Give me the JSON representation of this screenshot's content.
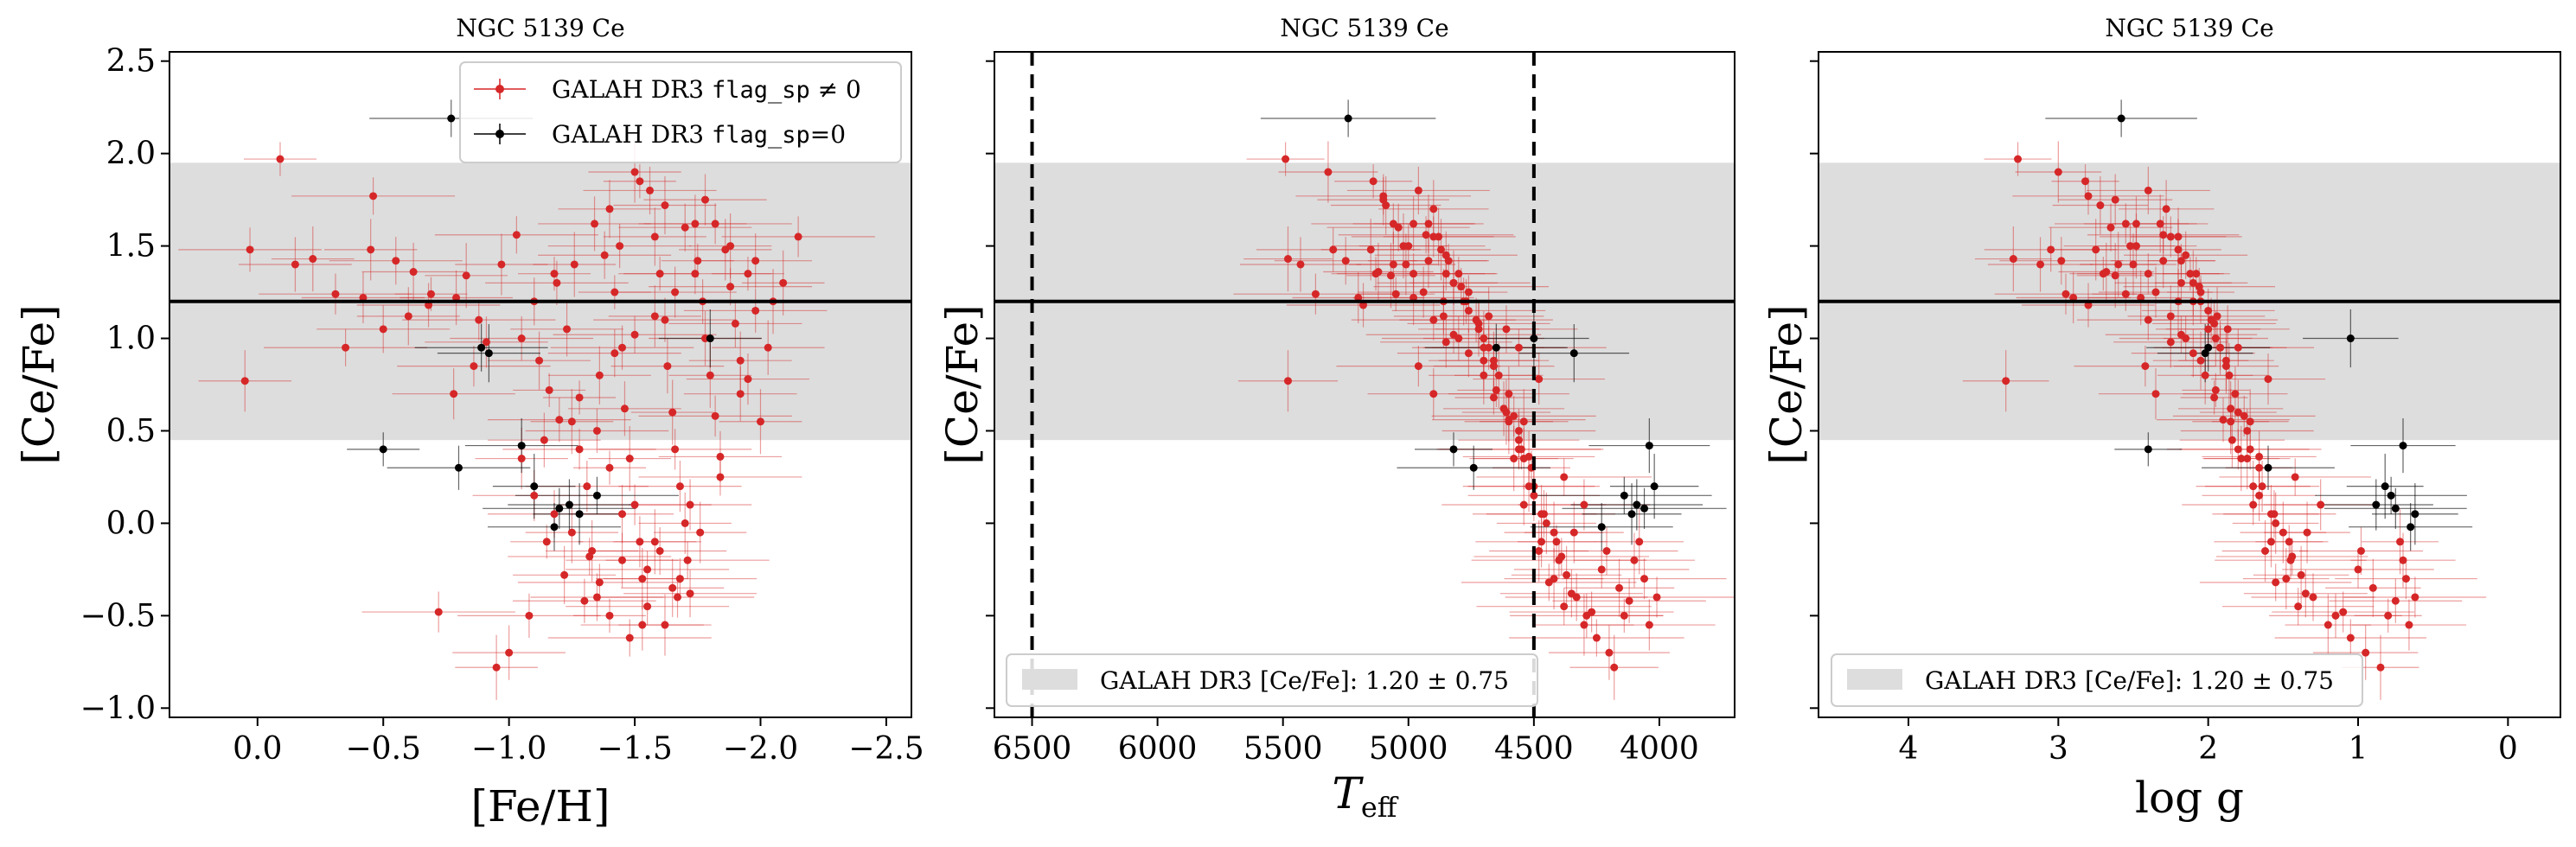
{
  "chart_data": [
    {
      "type": "scatter",
      "title": "NGC 5139 Ce",
      "xlabel": "[Fe/H]",
      "ylabel": "[Ce/Fe]",
      "xlim": [
        0.35,
        -2.6
      ],
      "ylim": [
        -1.05,
        2.55
      ],
      "xticks": [
        0.0,
        -0.5,
        -1.0,
        -1.5,
        -2.0,
        -2.5
      ],
      "xtick_labels": [
        "0.0",
        "−0.5",
        "−1.0",
        "−1.5",
        "−2.0",
        "−2.5"
      ],
      "yticks": [
        -1.0,
        -0.5,
        0.0,
        0.5,
        1.0,
        1.5,
        2.0,
        2.5
      ],
      "ytick_labels": [
        "−1.0",
        "−0.5",
        "0.0",
        "0.5",
        "1.0",
        "1.5",
        "2.0",
        "2.5"
      ],
      "legend": {
        "position": "top-right",
        "entries": [
          {
            "label": "GALAH DR3 ",
            "mono": "flag_sp",
            "suffix": " ≠ 0",
            "color": "#d62728"
          },
          {
            "label": "GALAH DR3 ",
            "mono": "flag_sp",
            "suffix": "=0",
            "color": "#000000"
          }
        ]
      },
      "band": {
        "center": 1.2,
        "half_width": 0.75,
        "color": "#dddddd"
      },
      "hline": 1.2
    },
    {
      "type": "scatter",
      "title": "NGC 5139 Ce",
      "xlabel": "T",
      "xlabel_sub": "eff",
      "ylabel": "[Ce/Fe]",
      "xlim": [
        6650,
        3700
      ],
      "ylim": [
        -1.05,
        2.55
      ],
      "xticks": [
        6500,
        6000,
        5500,
        5000,
        4500,
        4000
      ],
      "xtick_labels": [
        "6500",
        "6000",
        "5500",
        "5000",
        "4500",
        "4000"
      ],
      "yticks": [
        -1.0,
        -0.5,
        0.0,
        0.5,
        1.0,
        1.5,
        2.0,
        2.5
      ],
      "vlines": [
        6500,
        4500
      ],
      "legend": {
        "position": "bottom-left",
        "entries": [
          {
            "label": "GALAH DR3 [Ce/Fe]: 1.20 ± 0.75",
            "color": "#dddddd"
          }
        ]
      },
      "band": {
        "center": 1.2,
        "half_width": 0.75,
        "color": "#dddddd"
      },
      "hline": 1.2
    },
    {
      "type": "scatter",
      "title": "NGC 5139 Ce",
      "xlabel": "log g",
      "ylabel": "[Ce/Fe]",
      "xlim": [
        4.6,
        -0.35
      ],
      "ylim": [
        -1.05,
        2.55
      ],
      "xticks": [
        4,
        3,
        2,
        1,
        0
      ],
      "xtick_labels": [
        "4",
        "3",
        "2",
        "1",
        "0"
      ],
      "yticks": [
        -1.0,
        -0.5,
        0.0,
        0.5,
        1.0,
        1.5,
        2.0,
        2.5
      ],
      "legend": {
        "position": "bottom-left",
        "entries": [
          {
            "label": "GALAH DR3 [Ce/Fe]: 1.20 ± 0.75",
            "color": "#dddddd"
          }
        ]
      },
      "band": {
        "center": 1.2,
        "half_width": 0.75,
        "color": "#dddddd"
      },
      "hline": 1.2
    }
  ],
  "stars": {
    "fields": [
      "feh",
      "teff",
      "logg",
      "cefe",
      "flag_sp_nonzero"
    ],
    "rows": [
      [
        -0.09,
        5490,
        3.27,
        1.97,
        1
      ],
      [
        0.03,
        5300,
        3.05,
        1.48,
        1
      ],
      [
        -0.15,
        5430,
        3.12,
        1.4,
        1
      ],
      [
        -0.22,
        5480,
        3.3,
        1.43,
        1
      ],
      [
        -0.31,
        5370,
        2.95,
        1.24,
        1
      ],
      [
        -0.42,
        5200,
        2.9,
        1.22,
        1
      ],
      [
        -0.45,
        5150,
        2.75,
        1.48,
        1
      ],
      [
        -0.46,
        5100,
        2.8,
        1.77,
        1
      ],
      [
        -0.55,
        5250,
        2.98,
        1.42,
        1
      ],
      [
        -0.62,
        5120,
        2.68,
        1.36,
        1
      ],
      [
        -0.69,
        5050,
        2.55,
        1.24,
        1
      ],
      [
        -0.68,
        5180,
        2.8,
        1.18,
        1
      ],
      [
        -0.79,
        4980,
        2.45,
        1.22,
        1
      ],
      [
        -0.83,
        5070,
        2.62,
        1.34,
        1
      ],
      [
        -0.88,
        4900,
        2.4,
        1.1,
        1
      ],
      [
        -0.91,
        4850,
        2.25,
        0.98,
        1
      ],
      [
        -0.97,
        5010,
        2.5,
        1.4,
        1
      ],
      [
        -1.03,
        4930,
        2.3,
        1.56,
        1
      ],
      [
        -1.1,
        4780,
        2.1,
        1.2,
        1
      ],
      [
        -1.12,
        4700,
        2.05,
        0.88,
        1
      ],
      [
        -1.16,
        4650,
        1.95,
        0.72,
        1
      ],
      [
        -1.19,
        4820,
        2.18,
        1.3,
        1
      ],
      [
        -1.23,
        4720,
        2.0,
        1.05,
        1
      ],
      [
        -1.25,
        4600,
        1.85,
        0.55,
        1
      ],
      [
        -1.28,
        4560,
        1.8,
        0.4,
        1
      ],
      [
        -1.31,
        4520,
        1.7,
        0.2,
        1
      ],
      [
        -1.33,
        4480,
        1.62,
        -0.15,
        1
      ],
      [
        -1.36,
        4440,
        1.55,
        -0.32,
        1
      ],
      [
        -1.38,
        4850,
        2.15,
        1.45,
        1
      ],
      [
        -1.4,
        4900,
        2.28,
        1.7,
        1
      ],
      [
        -1.42,
        4760,
        2.05,
        1.25,
        1
      ],
      [
        -1.45,
        4680,
        1.92,
        0.95,
        1
      ],
      [
        -1.46,
        4620,
        1.85,
        0.62,
        1
      ],
      [
        -1.48,
        4580,
        1.78,
        0.35,
        1
      ],
      [
        -1.5,
        4540,
        1.7,
        0.1,
        1
      ],
      [
        -1.52,
        4470,
        1.58,
        -0.1,
        1
      ],
      [
        -1.53,
        4420,
        1.48,
        -0.3,
        1
      ],
      [
        -1.55,
        4380,
        1.4,
        -0.45,
        1
      ],
      [
        -1.56,
        4960,
        2.4,
        1.8,
        1
      ],
      [
        -1.58,
        4880,
        2.2,
        1.55,
        1
      ],
      [
        -1.6,
        4800,
        2.08,
        1.35,
        1
      ],
      [
        -1.62,
        4730,
        1.98,
        1.1,
        1
      ],
      [
        -1.63,
        4660,
        1.88,
        0.85,
        1
      ],
      [
        -1.65,
        4610,
        1.8,
        0.6,
        1
      ],
      [
        -1.66,
        4550,
        1.72,
        0.4,
        1
      ],
      [
        -1.68,
        4500,
        1.64,
        0.2,
        1
      ],
      [
        -1.7,
        4450,
        1.55,
        0.0,
        1
      ],
      [
        -1.71,
        4400,
        1.45,
        -0.2,
        1
      ],
      [
        -1.72,
        4350,
        1.35,
        -0.38,
        1
      ],
      [
        -1.74,
        4920,
        2.32,
        1.62,
        1
      ],
      [
        -1.75,
        4840,
        2.18,
        1.42,
        1
      ],
      [
        -1.77,
        4770,
        2.05,
        1.2,
        1
      ],
      [
        -1.78,
        4700,
        1.95,
        1.0,
        1
      ],
      [
        -1.8,
        4640,
        1.86,
        0.8,
        1
      ],
      [
        -1.82,
        4580,
        1.76,
        0.58,
        1
      ],
      [
        -1.84,
        4520,
        1.66,
        0.36,
        1
      ],
      [
        -1.86,
        4870,
        2.2,
        1.48,
        1
      ],
      [
        -1.88,
        4790,
        2.06,
        1.28,
        1
      ],
      [
        -1.9,
        4720,
        1.96,
        1.08,
        1
      ],
      [
        -1.92,
        4660,
        1.88,
        0.88,
        1
      ],
      [
        -1.95,
        4850,
        2.12,
        1.35,
        1
      ],
      [
        -1.98,
        4760,
        2.0,
        1.15,
        1
      ],
      [
        -2.03,
        4700,
        1.92,
        0.95,
        1
      ],
      [
        -2.09,
        4820,
        2.1,
        1.3,
        1
      ],
      [
        -2.15,
        4900,
        2.25,
        1.55,
        1
      ],
      [
        -1.95,
        4480,
        1.6,
        0.78,
        1
      ],
      [
        -1.62,
        4300,
        1.2,
        -0.55,
        1
      ],
      [
        -1.48,
        4250,
        1.05,
        -0.62,
        1
      ],
      [
        -1.35,
        4330,
        1.3,
        -0.4,
        1
      ],
      [
        -1.22,
        4370,
        1.38,
        -0.28,
        1
      ],
      [
        -1.15,
        4410,
        1.46,
        -0.1,
        1
      ],
      [
        -1.08,
        4290,
        1.15,
        -0.5,
        1
      ],
      [
        -1.0,
        4200,
        0.95,
        -0.7,
        1
      ],
      [
        -0.95,
        4180,
        0.85,
        -0.78,
        1
      ],
      [
        -0.72,
        4270,
        1.1,
        -0.48,
        1
      ],
      [
        -1.1,
        4500,
        1.66,
        0.15,
        1
      ],
      [
        -1.05,
        4540,
        1.74,
        0.35,
        1
      ],
      [
        -1.55,
        4230,
        1.0,
        -0.25,
        1
      ],
      [
        -1.6,
        4210,
        0.98,
        -0.15,
        1
      ],
      [
        -1.65,
        4160,
        0.9,
        -0.35,
        1
      ],
      [
        -1.4,
        4140,
        0.8,
        -0.5,
        1
      ],
      [
        -1.3,
        4120,
        0.75,
        -0.42,
        1
      ],
      [
        -1.45,
        4100,
        0.7,
        -0.2,
        1
      ],
      [
        -1.58,
        4080,
        0.72,
        -0.1,
        1
      ],
      [
        -1.68,
        4060,
        0.68,
        -0.3,
        1
      ],
      [
        -1.72,
        4300,
        1.25,
        0.1,
        1
      ],
      [
        -1.76,
        4340,
        1.34,
        -0.05,
        1
      ],
      [
        -1.84,
        4380,
        1.42,
        0.25,
        1
      ],
      [
        -1.7,
        5040,
        2.65,
        1.6,
        1
      ],
      [
        -1.62,
        5090,
        2.72,
        1.72,
        1
      ],
      [
        -1.52,
        5140,
        2.82,
        1.85,
        1
      ],
      [
        -1.44,
        5000,
        2.52,
        1.5,
        1
      ],
      [
        -1.34,
        4980,
        2.48,
        1.62,
        1
      ],
      [
        -1.26,
        5060,
        2.6,
        1.4,
        1
      ],
      [
        -0.86,
        4960,
        2.42,
        0.85,
        1
      ],
      [
        -0.78,
        4900,
        2.35,
        0.7,
        1
      ],
      [
        0.05,
        5480,
        3.35,
        0.77,
        1
      ],
      [
        -0.35,
        4560,
        1.8,
        0.95,
        1
      ],
      [
        -0.5,
        4610,
        1.87,
        1.05,
        1
      ],
      [
        -0.6,
        4680,
        1.94,
        1.12,
        1
      ],
      [
        -1.18,
        5130,
        2.7,
        1.35,
        1
      ],
      [
        -1.05,
        4800,
        2.15,
        1.0,
        1
      ],
      [
        -1.92,
        4600,
        1.82,
        0.7,
        1
      ],
      [
        -2.0,
        4540,
        1.72,
        0.55,
        1
      ],
      [
        -1.74,
        4980,
        2.4,
        1.35,
        1
      ],
      [
        -1.66,
        4940,
        2.35,
        1.25,
        1
      ],
      [
        -1.58,
        4860,
        2.25,
        1.12,
        1
      ],
      [
        -1.5,
        4820,
        2.18,
        1.02,
        1
      ],
      [
        -1.42,
        4760,
        2.1,
        0.92,
        1
      ],
      [
        -1.36,
        4700,
        2.02,
        0.8,
        1
      ],
      [
        -1.28,
        4660,
        1.96,
        0.68,
        1
      ],
      [
        -1.2,
        4600,
        1.9,
        0.56,
        1
      ],
      [
        -1.14,
        4560,
        1.84,
        0.45,
        1
      ],
      [
        -1.88,
        5020,
        2.48,
        1.5,
        1
      ],
      [
        -1.82,
        5060,
        2.55,
        1.62,
        1
      ],
      [
        -1.78,
        5100,
        2.62,
        1.75,
        1
      ],
      [
        -1.25,
        4420,
        1.5,
        -0.05,
        1
      ],
      [
        -1.32,
        4390,
        1.44,
        -0.18,
        1
      ],
      [
        -1.18,
        4460,
        1.56,
        0.05,
        1
      ],
      [
        -1.45,
        4470,
        1.58,
        0.05,
        1
      ],
      [
        -1.4,
        4510,
        1.66,
        0.3,
        1
      ],
      [
        -1.35,
        4560,
        1.74,
        0.5,
        1
      ],
      [
        -1.98,
        4920,
        2.3,
        1.42,
        1
      ],
      [
        -2.05,
        4860,
        2.2,
        1.2,
        1
      ],
      [
        -1.67,
        4010,
        0.62,
        -0.4,
        1
      ],
      [
        -1.53,
        4040,
        0.66,
        -0.55,
        1
      ],
      [
        -1.5,
        5320,
        3.0,
        1.9,
        1
      ],
      [
        -0.77,
        5240,
        2.58,
        2.19,
        0
      ],
      [
        -0.89,
        4650,
        2.0,
        0.95,
        0
      ],
      [
        -0.92,
        4340,
        2.02,
        0.92,
        0
      ],
      [
        -0.5,
        4820,
        2.4,
        0.4,
        0
      ],
      [
        -0.8,
        4740,
        1.6,
        0.3,
        0
      ],
      [
        -1.05,
        4040,
        0.7,
        0.42,
        0
      ],
      [
        -1.1,
        4020,
        0.82,
        0.2,
        0
      ],
      [
        -1.2,
        4060,
        0.75,
        0.08,
        0
      ],
      [
        -1.24,
        4090,
        0.88,
        0.1,
        0
      ],
      [
        -1.28,
        4110,
        0.62,
        0.05,
        0
      ],
      [
        -1.35,
        4140,
        0.78,
        0.15,
        0
      ],
      [
        -1.18,
        4230,
        0.65,
        -0.02,
        0
      ],
      [
        -1.8,
        4500,
        1.05,
        1.0,
        0
      ]
    ]
  }
}
